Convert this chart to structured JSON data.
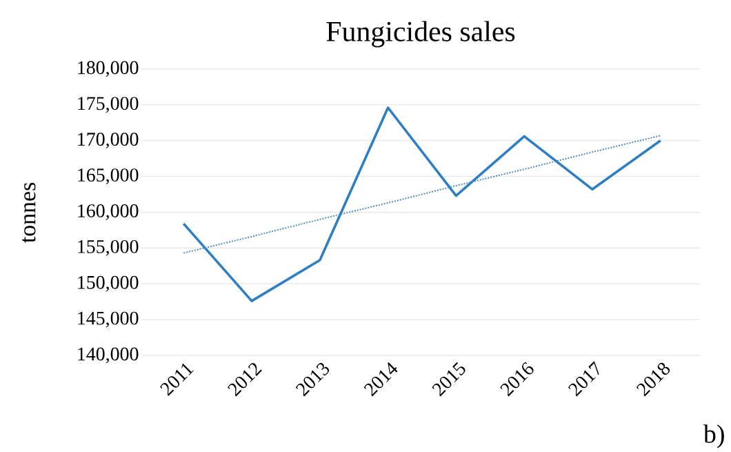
{
  "chart_data": {
    "type": "line",
    "title": "Fungicides sales",
    "ylabel": "tonnes",
    "categories": [
      "2011",
      "2012",
      "2013",
      "2014",
      "2015",
      "2016",
      "2017",
      "2018"
    ],
    "series": [
      {
        "color": "#2e7ec2",
        "values": [
          158400,
          147600,
          153300,
          174600,
          162300,
          170600,
          163200,
          170000
        ],
        "line_style": "solid"
      },
      {
        "type": "line",
        "color": "#4a8cc8",
        "values": [
          154300,
          156600,
          159000,
          161300,
          163700,
          166000,
          168400,
          170700
        ],
        "line_style": "dotted"
      }
    ],
    "ylim": [
      140000,
      180000
    ],
    "yticks": [
      {
        "value": 140000,
        "label": "140,000"
      },
      {
        "value": 145000,
        "label": "145,000"
      },
      {
        "value": 150000,
        "label": "150,000"
      },
      {
        "value": 155000,
        "label": "155,000"
      },
      {
        "value": 160000,
        "label": "160,000"
      },
      {
        "value": 165000,
        "label": "165,000"
      },
      {
        "value": 170000,
        "label": "170,000"
      },
      {
        "value": 175000,
        "label": "175,000"
      },
      {
        "value": 180000,
        "label": "180,000"
      }
    ],
    "grid": "y",
    "marker": "none",
    "annotations": [
      "b)"
    ]
  }
}
